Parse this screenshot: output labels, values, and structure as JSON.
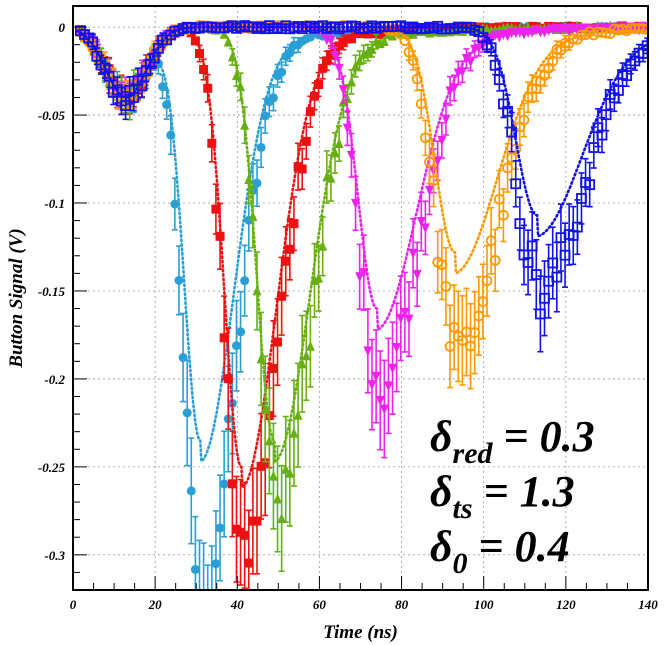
{
  "chart_data": {
    "type": "scatter",
    "title": "",
    "xlabel": "Time (ns)",
    "ylabel": "Button Signal (V)",
    "xlim": [
      0,
      140
    ],
    "ylim": [
      -0.32,
      0.012
    ],
    "xticks": [
      0,
      20,
      40,
      60,
      80,
      100,
      120,
      140
    ],
    "yticks": [
      0,
      -0.05,
      -0.1,
      -0.15,
      -0.2,
      -0.25,
      -0.3
    ],
    "xtick_labels": [
      "0",
      "20",
      "40",
      "60",
      "80",
      "100",
      "120",
      "140"
    ],
    "ytick_labels": [
      "0",
      "-0.05",
      "-0.1",
      "-0.15",
      "-0.2",
      "-0.25",
      "-0.3"
    ],
    "grid": true,
    "legend": "none",
    "annotations": [
      {
        "base": "δ",
        "sub": "red",
        "text": " = 0.3"
      },
      {
        "base": "δ",
        "sub": "ts",
        "text": " = 1.3"
      },
      {
        "base": "δ",
        "sub": "0",
        "text": " = 0.4"
      }
    ],
    "series": [
      {
        "color": "#2a9fd6",
        "marker": "circle-filled",
        "t0": 1,
        "common_amp": -0.04,
        "peak_x": 31,
        "peak_y": -0.32,
        "model_peak_y": -0.235,
        "x_end": 140
      },
      {
        "color": "#ee1111",
        "marker": "square-filled",
        "t0": 1,
        "common_amp": -0.04,
        "peak_x": 41,
        "peak_y": -0.29,
        "model_peak_y": -0.25,
        "x_end": 140
      },
      {
        "color": "#66b014",
        "marker": "triangle-up-filled",
        "t0": 1,
        "common_amp": -0.04,
        "peak_x": 49,
        "peak_y": -0.26,
        "model_peak_y": -0.235,
        "x_end": 140
      },
      {
        "color": "#ee22ee",
        "marker": "triangle-down-filled",
        "t0": 1,
        "common_amp": -0.04,
        "peak_x": 74,
        "peak_y": -0.195,
        "model_peak_y": -0.16,
        "x_end": 140
      },
      {
        "color": "#ff9900",
        "marker": "circle-open",
        "t0": 1,
        "common_amp": -0.04,
        "peak_x": 93,
        "peak_y": -0.175,
        "model_peak_y": -0.128,
        "x_end": 140
      },
      {
        "color": "#1111ee",
        "marker": "square-open",
        "t0": 1,
        "common_amp": -0.04,
        "peak_x": 113,
        "peak_y": -0.14,
        "model_peak_y": -0.107,
        "x_end": 140
      }
    ]
  }
}
